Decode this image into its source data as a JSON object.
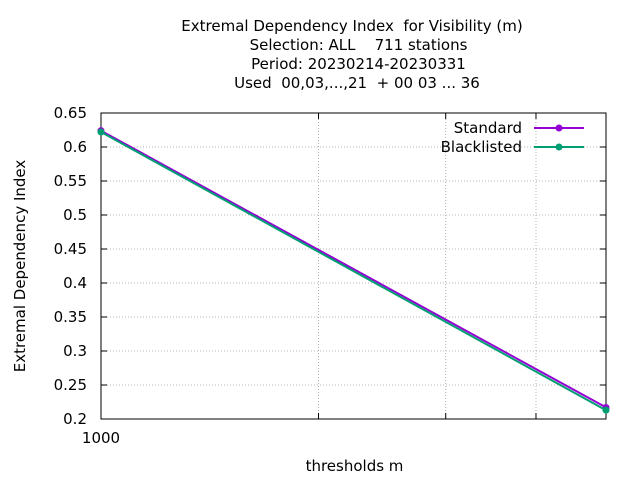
{
  "chart_data": {
    "type": "line",
    "title_lines": [
      "Extremal Dependency Index  for Visibility (m)",
      "Selection: ALL    711 stations",
      "Period: 20230214-20230331",
      "Used  00,03,...,21  + 00 03 ... 36"
    ],
    "xlabel": "thresholds m",
    "ylabel": "Extremal Dependency Index",
    "x_scale": "log",
    "xlim": [
      1000,
      5000
    ],
    "x_tick_labels": [
      "1000"
    ],
    "ylim": [
      0.2,
      0.65
    ],
    "y_ticks": [
      "0.2",
      "0.25",
      "0.3",
      "0.35",
      "0.4",
      "0.45",
      "0.5",
      "0.55",
      "0.6",
      "0.65"
    ],
    "grid": true,
    "legend_position": "top-right",
    "series": [
      {
        "name": "Standard",
        "color": "#9400d3",
        "x": [
          1000,
          5000
        ],
        "values": [
          0.624,
          0.217
        ]
      },
      {
        "name": "Blacklisted",
        "color": "#009e73",
        "x": [
          1000,
          5000
        ],
        "values": [
          0.622,
          0.213
        ]
      }
    ]
  }
}
